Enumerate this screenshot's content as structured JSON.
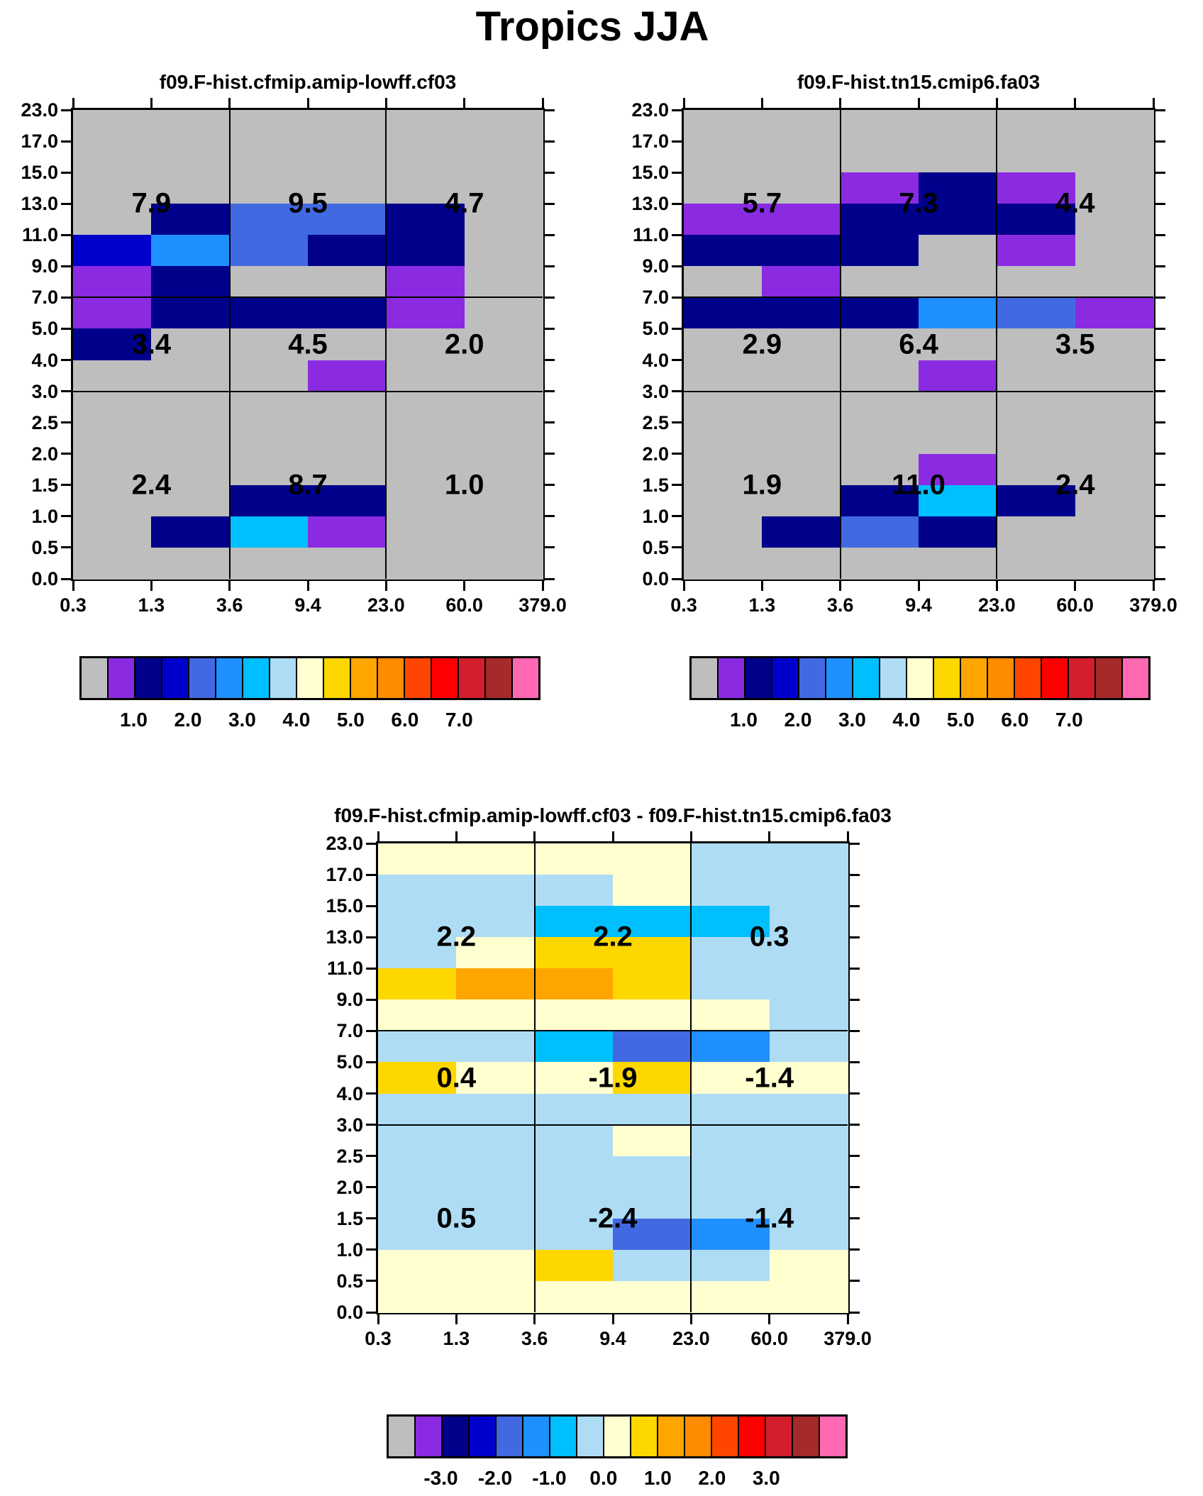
{
  "chart_data": {
    "type": "heatmap",
    "title": "Tropics JJA",
    "palette": {
      "gray": "#BEBEBE",
      "purple": "#8A2BE2",
      "navy": "#00008B",
      "blue": "#0000CD",
      "royal": "#4169E1",
      "dodger": "#1E90FF",
      "cyan": "#00BFFF",
      "lightblue": "#AEDCF5",
      "cream": "#FFFFD0",
      "gold": "#FFD700",
      "orange": "#FFA500",
      "darkorange": "#FF8C00",
      "orangered": "#FF4500",
      "red": "#FF0000",
      "crimson": "#D21E2D",
      "brown": "#A52A2A",
      "pink": "#FF69B4"
    },
    "y_ticks": [
      "23.0",
      "17.0",
      "15.0",
      "13.0",
      "11.0",
      "9.0",
      "7.0",
      "5.0",
      "4.0",
      "3.0",
      "2.5",
      "2.0",
      "1.5",
      "1.0",
      "0.5",
      "0.0"
    ],
    "x_ticks": [
      "0.3",
      "1.3",
      "3.6",
      "9.4",
      "23.0",
      "60.0",
      "379.0"
    ],
    "colorbar_colors": [
      "gray",
      "purple",
      "navy",
      "blue",
      "royal",
      "dodger",
      "cyan",
      "lightblue",
      "cream",
      "gold",
      "orange",
      "darkorange",
      "orangered",
      "red",
      "crimson",
      "brown",
      "pink"
    ],
    "panels": [
      {
        "title": "f09.F-hist.cfmip.amip-lowff.cf03",
        "region_values": [
          [
            "7.9",
            "9.5",
            "4.7"
          ],
          [
            "3.4",
            "4.5",
            "2.0"
          ],
          [
            "2.4",
            "8.7",
            "1.0"
          ]
        ],
        "rows": [
          [
            "gray",
            "gray",
            "gray",
            "gray",
            "gray",
            "gray"
          ],
          [
            "gray",
            "gray",
            "gray",
            "gray",
            "gray",
            "gray"
          ],
          [
            "gray",
            "gray",
            "gray",
            "gray",
            "gray",
            "gray"
          ],
          [
            "gray",
            "navy",
            "royal",
            "royal",
            "navy",
            "gray"
          ],
          [
            "blue",
            "dodger",
            "royal",
            "navy",
            "navy",
            "gray"
          ],
          [
            "purple",
            "navy",
            "gray",
            "gray",
            "purple",
            "gray"
          ],
          [
            "purple",
            "navy",
            "navy",
            "navy",
            "purple",
            "gray"
          ],
          [
            "navy",
            "gray",
            "gray",
            "gray",
            "gray",
            "gray"
          ],
          [
            "gray",
            "gray",
            "gray",
            "purple",
            "gray",
            "gray"
          ],
          [
            "gray",
            "gray",
            "gray",
            "gray",
            "gray",
            "gray"
          ],
          [
            "gray",
            "gray",
            "gray",
            "gray",
            "gray",
            "gray"
          ],
          [
            "gray",
            "gray",
            "gray",
            "gray",
            "gray",
            "gray"
          ],
          [
            "gray",
            "gray",
            "navy",
            "navy",
            "gray",
            "gray"
          ],
          [
            "gray",
            "navy",
            "cyan",
            "purple",
            "gray",
            "gray"
          ],
          [
            "gray",
            "gray",
            "gray",
            "gray",
            "gray",
            "gray"
          ]
        ],
        "colorbar_labels": [
          "1.0",
          "2.0",
          "3.0",
          "4.0",
          "5.0",
          "6.0",
          "7.0"
        ]
      },
      {
        "title": "f09.F-hist.tn15.cmip6.fa03",
        "region_values": [
          [
            "5.7",
            "7.3",
            "4.4"
          ],
          [
            "2.9",
            "6.4",
            "3.5"
          ],
          [
            "1.9",
            "11.0",
            "2.4"
          ]
        ],
        "rows": [
          [
            "gray",
            "gray",
            "gray",
            "gray",
            "gray",
            "gray"
          ],
          [
            "gray",
            "gray",
            "gray",
            "gray",
            "gray",
            "gray"
          ],
          [
            "gray",
            "gray",
            "purple",
            "navy",
            "purple",
            "gray"
          ],
          [
            "purple",
            "purple",
            "navy",
            "navy",
            "navy",
            "gray"
          ],
          [
            "navy",
            "navy",
            "navy",
            "gray",
            "purple",
            "gray"
          ],
          [
            "gray",
            "purple",
            "gray",
            "gray",
            "gray",
            "gray"
          ],
          [
            "navy",
            "navy",
            "navy",
            "dodger",
            "royal",
            "purple"
          ],
          [
            "gray",
            "gray",
            "gray",
            "gray",
            "gray",
            "gray"
          ],
          [
            "gray",
            "gray",
            "gray",
            "purple",
            "gray",
            "gray"
          ],
          [
            "gray",
            "gray",
            "gray",
            "gray",
            "gray",
            "gray"
          ],
          [
            "gray",
            "gray",
            "gray",
            "gray",
            "gray",
            "gray"
          ],
          [
            "gray",
            "gray",
            "gray",
            "purple",
            "gray",
            "gray"
          ],
          [
            "gray",
            "gray",
            "navy",
            "cyan",
            "navy",
            "gray"
          ],
          [
            "gray",
            "navy",
            "royal",
            "navy",
            "gray",
            "gray"
          ],
          [
            "gray",
            "gray",
            "gray",
            "gray",
            "gray",
            "gray"
          ]
        ],
        "colorbar_labels": [
          "1.0",
          "2.0",
          "3.0",
          "4.0",
          "5.0",
          "6.0",
          "7.0"
        ]
      },
      {
        "title": "f09.F-hist.cfmip.amip-lowff.cf03 - f09.F-hist.tn15.cmip6.fa03",
        "region_values": [
          [
            "2.2",
            "2.2",
            "0.3"
          ],
          [
            "0.4",
            "-1.9",
            "-1.4"
          ],
          [
            "0.5",
            "-2.4",
            "-1.4"
          ]
        ],
        "rows": [
          [
            "cream",
            "cream",
            "cream",
            "cream",
            "lightblue",
            "lightblue"
          ],
          [
            "lightblue",
            "lightblue",
            "lightblue",
            "cream",
            "lightblue",
            "lightblue"
          ],
          [
            "lightblue",
            "lightblue",
            "cyan",
            "cyan",
            "cyan",
            "lightblue"
          ],
          [
            "lightblue",
            "cream",
            "gold",
            "gold",
            "lightblue",
            "lightblue"
          ],
          [
            "gold",
            "orange",
            "orange",
            "gold",
            "lightblue",
            "lightblue"
          ],
          [
            "cream",
            "cream",
            "cream",
            "cream",
            "cream",
            "lightblue"
          ],
          [
            "lightblue",
            "lightblue",
            "cyan",
            "royal",
            "dodger",
            "lightblue"
          ],
          [
            "gold",
            "cream",
            "cream",
            "gold",
            "cream",
            "cream"
          ],
          [
            "lightblue",
            "lightblue",
            "lightblue",
            "lightblue",
            "lightblue",
            "lightblue"
          ],
          [
            "lightblue",
            "lightblue",
            "lightblue",
            "cream",
            "lightblue",
            "lightblue"
          ],
          [
            "lightblue",
            "lightblue",
            "lightblue",
            "lightblue",
            "lightblue",
            "lightblue"
          ],
          [
            "lightblue",
            "lightblue",
            "lightblue",
            "lightblue",
            "lightblue",
            "lightblue"
          ],
          [
            "lightblue",
            "lightblue",
            "lightblue",
            "royal",
            "dodger",
            "lightblue"
          ],
          [
            "cream",
            "cream",
            "gold",
            "lightblue",
            "lightblue",
            "cream"
          ],
          [
            "cream",
            "cream",
            "cream",
            "cream",
            "cream",
            "cream"
          ]
        ],
        "colorbar_labels": [
          "-3.0",
          "-2.0",
          "-1.0",
          "0.0",
          "1.0",
          "2.0",
          "3.0"
        ]
      }
    ]
  }
}
